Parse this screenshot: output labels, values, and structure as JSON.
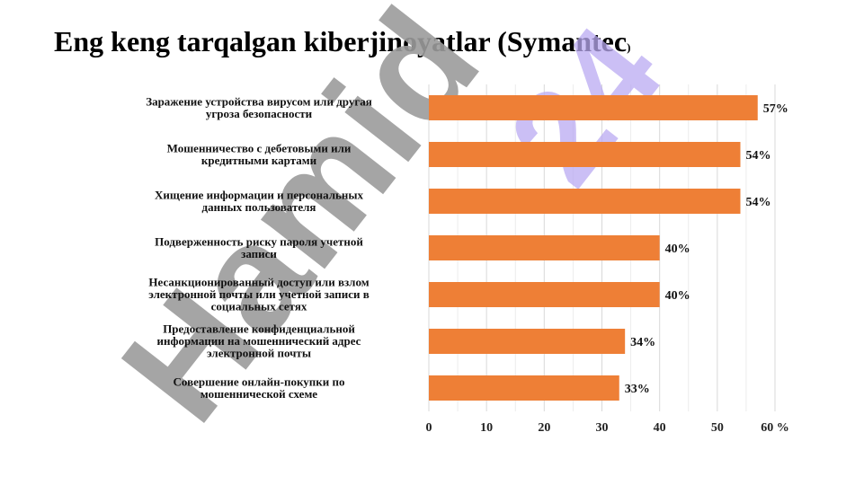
{
  "page": {
    "title_main": "Eng keng tarqalgan kiberjinoyatlar (Symantec",
    "title_close": ")"
  },
  "watermark": {
    "text_grey": "Hamid",
    "text_purple": "24",
    "colors": {
      "grey": "#9b9b9b",
      "purple": "#b9a9f2"
    }
  },
  "colors": {
    "bar": "#ee7f36",
    "grid": "#d9d9d9",
    "text": "#111111"
  },
  "chart_data": {
    "type": "bar",
    "orientation": "horizontal",
    "categories": [
      [
        "Заражение устройства вирусом или другая",
        "угроза безопасности"
      ],
      [
        "Мошенничество с дебетовыми или",
        "кредитными картами"
      ],
      [
        "Хищение информации и персональных",
        "данных пользователя"
      ],
      [
        "Подверженность риску пароля учетной",
        "записи"
      ],
      [
        "Несанкционированный доступ или взлом",
        "электронной почты или учетной записи в",
        "социальных сетях"
      ],
      [
        "Предоставление конфиденциальной",
        "информации на мошеннический адрес",
        "электронной почты"
      ],
      [
        "Совершение онлайн-покупки по",
        "мошеннической схеме"
      ]
    ],
    "values": [
      57,
      54,
      54,
      40,
      40,
      34,
      33
    ],
    "value_labels": [
      "57%",
      "54%",
      "54%",
      "40%",
      "40%",
      "34%",
      "33%"
    ],
    "xlim": [
      0,
      60
    ],
    "xticks": [
      "0",
      "10",
      "20",
      "30",
      "40",
      "50",
      "60 %"
    ],
    "grid": true,
    "legend": "none"
  }
}
